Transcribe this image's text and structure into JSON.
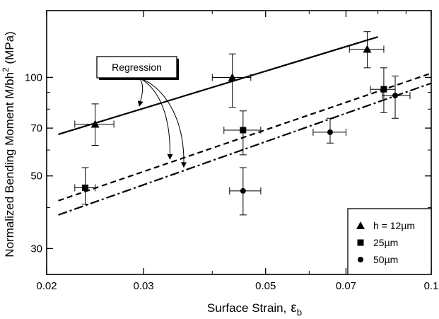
{
  "chart_data": {
    "type": "scatter",
    "xlabel": "Surface Strain,",
    "xlabel_symbol": "ε",
    "xlabel_sub": "b",
    "ylabel": "Normalized Bending Moment  M/bh",
    "ylabel_sup": "2",
    "ylabel_unit": " (MPa)",
    "x_scale": "log",
    "y_scale": "log",
    "xlim": [
      0.02,
      0.1
    ],
    "ylim": [
      25,
      160
    ],
    "x_ticks": [
      0.02,
      0.03,
      0.05,
      0.07,
      0.1
    ],
    "x_tick_labels": [
      "0.02",
      "0.03",
      "0.05",
      "0.07",
      "0.1"
    ],
    "y_ticks": [
      30,
      50,
      70,
      100
    ],
    "y_tick_labels": [
      "30",
      "50",
      "70",
      "100"
    ],
    "grid": false,
    "legend_position": "bottom-right",
    "annotation": "Regression",
    "series": [
      {
        "name": "h = 12µm",
        "marker": "triangle",
        "line_style": "solid",
        "points": [
          {
            "x": 0.0245,
            "y": 72,
            "x_err": [
              0.0225,
              0.0265
            ],
            "y_err": [
              62,
              83
            ]
          },
          {
            "x": 0.0435,
            "y": 100,
            "x_err": [
              0.04,
              0.047
            ],
            "y_err": [
              81,
              118
            ]
          },
          {
            "x": 0.0765,
            "y": 122,
            "x_err": [
              0.071,
              0.082
            ],
            "y_err": [
              107,
              138
            ]
          }
        ],
        "regression": [
          {
            "x": 0.021,
            "y": 67
          },
          {
            "x": 0.08,
            "y": 133
          }
        ]
      },
      {
        "name": "25µm",
        "marker": "square",
        "line_style": "dashed",
        "points": [
          {
            "x": 0.0235,
            "y": 46,
            "x_err": [
              0.0225,
              0.0245
            ],
            "y_err": [
              41,
              53
            ]
          },
          {
            "x": 0.0455,
            "y": 69,
            "x_err": [
              0.042,
              0.049
            ],
            "y_err": [
              58,
              79
            ]
          },
          {
            "x": 0.082,
            "y": 92,
            "x_err": [
              0.0775,
              0.086
            ],
            "y_err": [
              78,
              107
            ]
          }
        ],
        "regression": [
          {
            "x": 0.021,
            "y": 42
          },
          {
            "x": 0.1,
            "y": 103
          }
        ]
      },
      {
        "name": "50µm",
        "marker": "circle",
        "line_style": "dashdot",
        "points": [
          {
            "x": 0.0455,
            "y": 45,
            "x_err": [
              0.043,
              0.049
            ],
            "y_err": [
              38,
              53
            ]
          },
          {
            "x": 0.0655,
            "y": 68,
            "x_err": [
              0.061,
              0.07
            ],
            "y_err": [
              63,
              75
            ]
          },
          {
            "x": 0.086,
            "y": 88,
            "x_err": [
              0.0815,
              0.0915
            ],
            "y_err": [
              75,
              101
            ]
          }
        ],
        "regression": [
          {
            "x": 0.021,
            "y": 38
          },
          {
            "x": 0.1,
            "y": 96
          }
        ]
      }
    ]
  }
}
